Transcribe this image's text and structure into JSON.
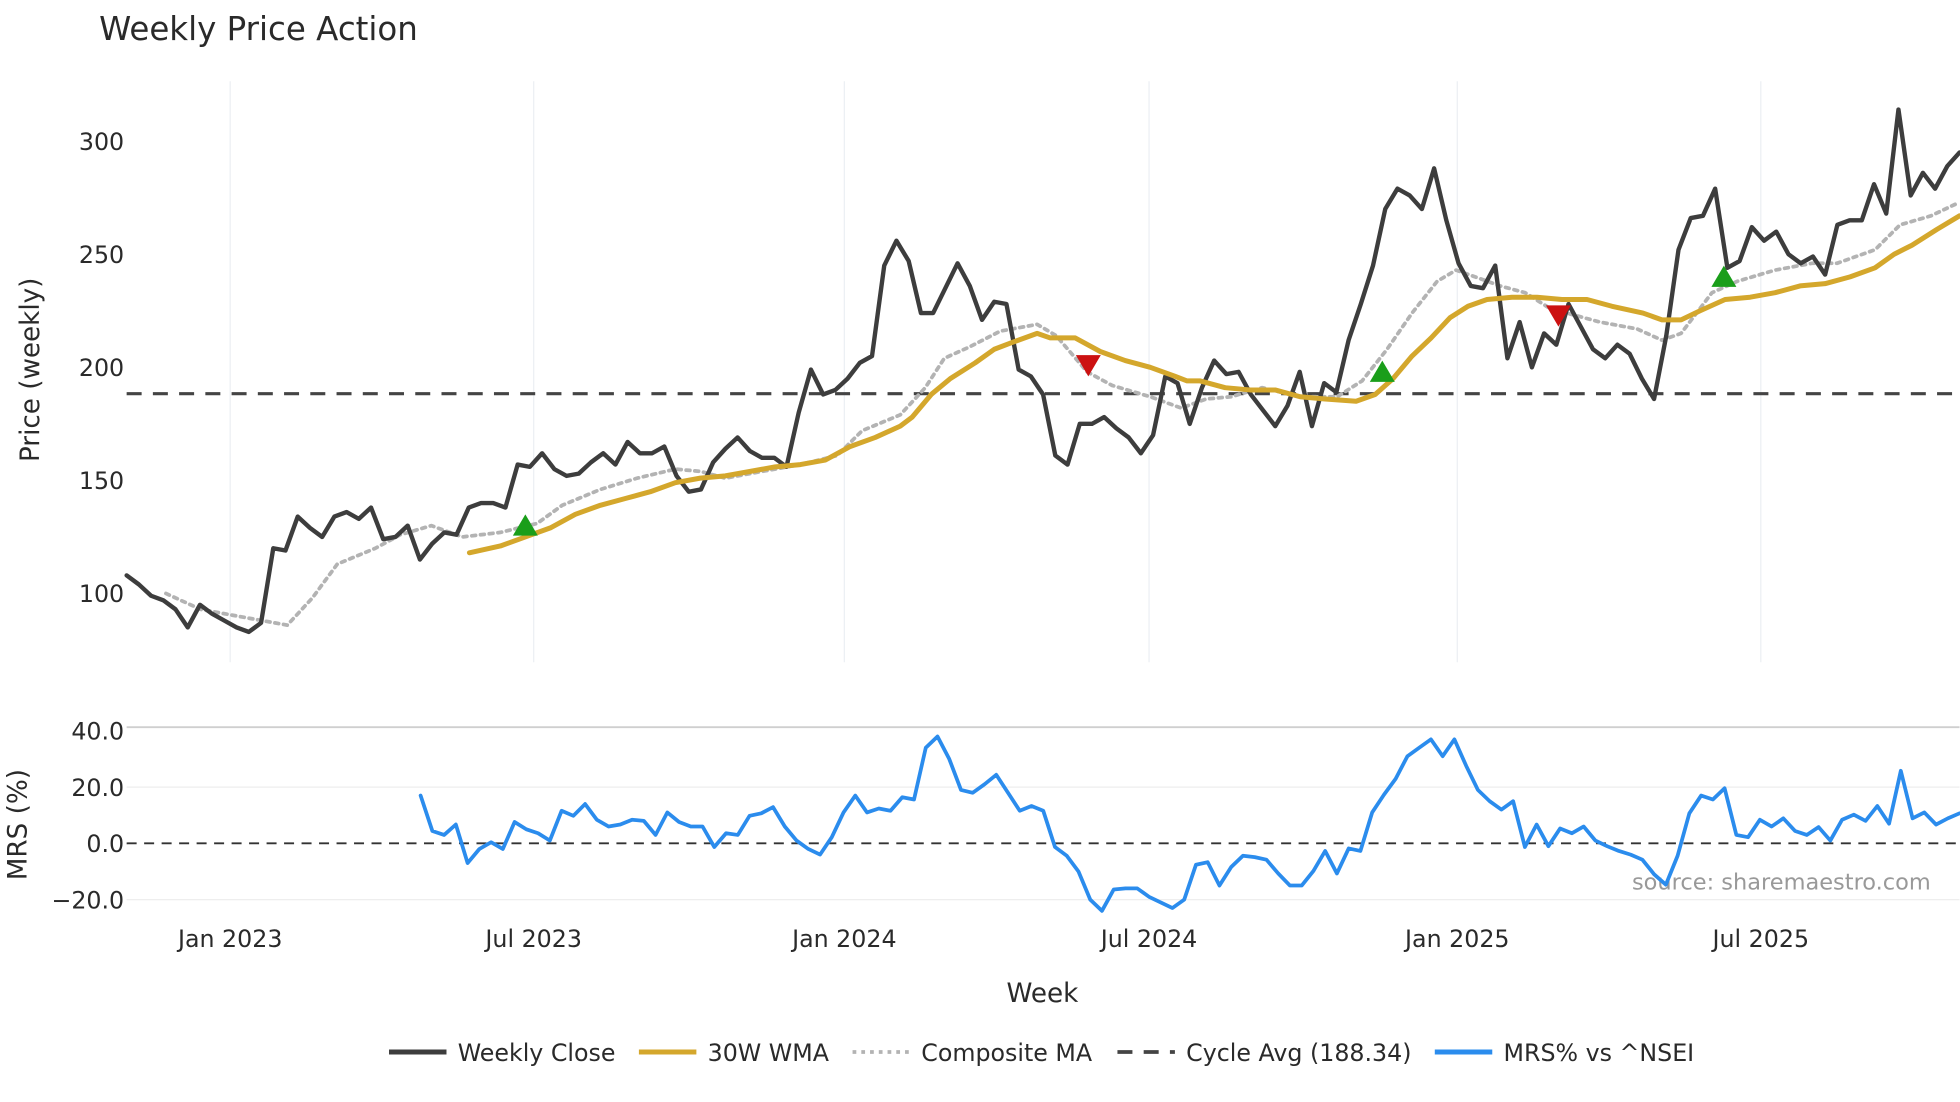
{
  "chart_data": [
    {
      "type": "line",
      "title": "Weekly Price Action",
      "ylabel": "Price (weekly)",
      "ylim": [
        70,
        325
      ],
      "yticks": [
        100,
        150,
        200,
        250,
        300
      ],
      "xlim_weeks": [
        0,
        154
      ],
      "xticks": [
        {
          "week": 8.7,
          "label": "Jan 2023"
        },
        {
          "week": 34.2,
          "label": "Jul 2023"
        },
        {
          "week": 60.3,
          "label": "Jan 2024"
        },
        {
          "week": 85.9,
          "label": "Jul 2024"
        },
        {
          "week": 111.8,
          "label": "Jan 2025"
        },
        {
          "week": 137.3,
          "label": "Jul 2025"
        }
      ],
      "grid": true,
      "series": [
        {
          "name": "Weekly Close",
          "color": "#3d3d3d",
          "x_start": 0,
          "x_end": 154,
          "values": [
            108,
            104,
            99,
            97,
            93,
            85,
            95,
            91,
            88,
            85,
            83,
            87,
            120,
            119,
            134,
            129,
            125,
            134,
            136,
            133,
            138,
            124,
            125,
            130,
            115,
            122,
            127,
            126,
            138,
            140,
            140,
            138,
            157,
            156,
            162,
            155,
            152,
            153,
            158,
            162,
            157,
            167,
            162,
            162,
            165,
            152,
            145,
            146,
            158,
            164,
            169,
            163,
            160,
            160,
            156,
            180,
            199,
            188,
            190,
            195,
            202,
            205,
            245,
            256,
            247,
            224,
            224,
            235,
            246,
            236,
            221,
            229,
            228,
            199,
            196,
            188,
            161,
            157,
            175,
            175,
            178,
            173,
            169,
            162,
            170,
            196,
            193,
            175,
            191,
            203,
            197,
            198,
            188,
            181,
            174,
            183,
            198,
            174,
            193,
            189,
            212,
            228,
            245,
            270,
            279,
            276,
            270,
            288,
            265,
            246,
            236,
            235,
            245,
            204,
            220,
            200,
            215,
            210,
            228,
            218,
            208,
            204,
            210,
            206,
            195,
            186,
            214,
            252,
            266,
            267,
            279,
            244,
            247,
            262,
            256,
            260,
            250,
            246,
            249,
            241,
            263,
            265,
            265,
            281,
            268,
            314,
            276,
            286,
            279,
            289,
            295
          ]
        },
        {
          "name": "30W WMA",
          "color": "#d4a72c",
          "points": [
            [
              28.8,
              118
            ],
            [
              31.4,
              121
            ],
            [
              33.5,
              125
            ],
            [
              35.6,
              129
            ],
            [
              37.7,
              135
            ],
            [
              39.8,
              139
            ],
            [
              41.9,
              142
            ],
            [
              44.0,
              145
            ],
            [
              46.1,
              149
            ],
            [
              48.2,
              151
            ],
            [
              50.3,
              152
            ],
            [
              52.4,
              154
            ],
            [
              54.5,
              156
            ],
            [
              56.6,
              157
            ],
            [
              58.7,
              159
            ],
            [
              60.8,
              165
            ],
            [
              62.9,
              169
            ],
            [
              65.0,
              174
            ],
            [
              66.0,
              178
            ],
            [
              67.6,
              188
            ],
            [
              69.2,
              195
            ],
            [
              71.3,
              202
            ],
            [
              72.9,
              208
            ],
            [
              74.4,
              211
            ],
            [
              76.5,
              215
            ],
            [
              77.6,
              213
            ],
            [
              79.7,
              213
            ],
            [
              81.8,
              207
            ],
            [
              83.9,
              203
            ],
            [
              86.0,
              200
            ],
            [
              88.1,
              196
            ],
            [
              89.1,
              194
            ],
            [
              90.2,
              194
            ],
            [
              92.3,
              191
            ],
            [
              94.4,
              190
            ],
            [
              96.5,
              190
            ],
            [
              98.6,
              187
            ],
            [
              100.7,
              186
            ],
            [
              103.3,
              185
            ],
            [
              104.9,
              188
            ],
            [
              106.4,
              195
            ],
            [
              108.0,
              205
            ],
            [
              109.6,
              213
            ],
            [
              111.2,
              222
            ],
            [
              112.7,
              227
            ],
            [
              114.3,
              230
            ],
            [
              116.4,
              231
            ],
            [
              118.5,
              231
            ],
            [
              120.6,
              230
            ],
            [
              122.7,
              230
            ],
            [
              124.8,
              227
            ],
            [
              127.4,
              224
            ],
            [
              129.0,
              221
            ],
            [
              130.6,
              221
            ],
            [
              132.2,
              225
            ],
            [
              134.3,
              230
            ],
            [
              136.4,
              231
            ],
            [
              138.5,
              233
            ],
            [
              140.6,
              236
            ],
            [
              142.7,
              237
            ],
            [
              144.8,
              240
            ],
            [
              146.9,
              244
            ],
            [
              148.5,
              250
            ],
            [
              150.0,
              254
            ],
            [
              152.1,
              261
            ],
            [
              154.0,
              267
            ]
          ]
        },
        {
          "name": "Composite MA",
          "color": "#b3b3b3",
          "points": [
            [
              3.3,
              100
            ],
            [
              6.2,
              93
            ],
            [
              9.3,
              90
            ],
            [
              13.5,
              86
            ],
            [
              15.6,
              98
            ],
            [
              17.7,
              113
            ],
            [
              20.9,
              120
            ],
            [
              23.0,
              126
            ],
            [
              25.6,
              130
            ],
            [
              28.2,
              125
            ],
            [
              31.4,
              127
            ],
            [
              34.5,
              131
            ],
            [
              36.6,
              139
            ],
            [
              39.8,
              146
            ],
            [
              42.9,
              151
            ],
            [
              46.1,
              155
            ],
            [
              48.2,
              154
            ],
            [
              50.3,
              151
            ],
            [
              53.4,
              154
            ],
            [
              56.6,
              157
            ],
            [
              59.7,
              161
            ],
            [
              61.8,
              172
            ],
            [
              65.0,
              179
            ],
            [
              67.1,
              191
            ],
            [
              68.7,
              204
            ],
            [
              70.8,
              209
            ],
            [
              73.4,
              216
            ],
            [
              76.5,
              219
            ],
            [
              78.1,
              214
            ],
            [
              80.7,
              198
            ],
            [
              82.8,
              192
            ],
            [
              86.0,
              187
            ],
            [
              88.6,
              182
            ],
            [
              90.7,
              186
            ],
            [
              92.8,
              187
            ],
            [
              95.4,
              191
            ],
            [
              98.6,
              187
            ],
            [
              101.7,
              187
            ],
            [
              103.8,
              194
            ],
            [
              105.9,
              208
            ],
            [
              108.0,
              224
            ],
            [
              110.1,
              238
            ],
            [
              111.7,
              243
            ],
            [
              113.3,
              240
            ],
            [
              115.4,
              236
            ],
            [
              117.5,
              233
            ],
            [
              119.6,
              226
            ],
            [
              121.7,
              223
            ],
            [
              123.8,
              220
            ],
            [
              126.9,
              217
            ],
            [
              129.0,
              212
            ],
            [
              130.6,
              215
            ],
            [
              133.2,
              233
            ],
            [
              135.3,
              238
            ],
            [
              138.5,
              243
            ],
            [
              141.6,
              246
            ],
            [
              143.7,
              246
            ],
            [
              146.9,
              252
            ],
            [
              149.0,
              263
            ],
            [
              151.6,
              267
            ],
            [
              154.0,
              273
            ]
          ]
        },
        {
          "name": "Cycle Avg (188.34)",
          "color": "#444444",
          "value": 188.34
        }
      ],
      "markers": [
        {
          "type": "buy",
          "week": 33.5,
          "value": 130,
          "color": "#1a9e1a"
        },
        {
          "type": "sell",
          "week": 80.8,
          "value": 201,
          "color": "#cc1111"
        },
        {
          "type": "buy",
          "week": 105.5,
          "value": 198,
          "color": "#1a9e1a"
        },
        {
          "type": "sell",
          "week": 120.3,
          "value": 223,
          "color": "#cc1111"
        },
        {
          "type": "buy",
          "week": 134.2,
          "value": 240,
          "color": "#1a9e1a"
        }
      ]
    },
    {
      "type": "line",
      "ylabel": "MRS (%)",
      "xlabel": "Week",
      "ylim": [
        -27,
        43
      ],
      "yticks": [
        {
          "v": 40,
          "label": "40.0"
        },
        {
          "v": 20,
          "label": "20.0"
        },
        {
          "v": 0,
          "label": "0.0"
        },
        {
          "v": -20,
          "label": "−20.0"
        }
      ],
      "zero_line": 0,
      "series": [
        {
          "name": "MRS% vs ^NSEI",
          "color": "#2b8ced",
          "x_start": 24.7,
          "x_end": 154,
          "values": [
            17,
            4.4,
            3,
            6.7,
            -7,
            -2,
            0.4,
            -2,
            7.6,
            5,
            3.6,
            1,
            11.6,
            9.8,
            14,
            8.4,
            6,
            6.7,
            8.4,
            8,
            3,
            11,
            7.6,
            6,
            6,
            -1.3,
            3.6,
            3,
            9.8,
            10.7,
            12.9,
            6,
            1,
            -2,
            -4,
            2.2,
            11,
            17,
            11,
            12.4,
            11.6,
            16.4,
            15.6,
            34,
            38,
            30,
            19,
            18,
            21,
            24.4,
            18,
            11.6,
            13.3,
            11.6,
            -1.3,
            -4.4,
            -10,
            -20,
            -24,
            -16.4,
            -16,
            -16,
            -19,
            -21,
            -23,
            -20,
            -7.6,
            -6.7,
            -15,
            -8.4,
            -4.4,
            -4.9,
            -5.8,
            -10.7,
            -15,
            -15,
            -9.8,
            -2.7,
            -10.7,
            -1.8,
            -2.7,
            11,
            17.3,
            23,
            31,
            34,
            37,
            31,
            37,
            27.6,
            19,
            15,
            12,
            15,
            -1.3,
            6.7,
            -1,
            5.3,
            3.6,
            6,
            1,
            -1,
            -2.7,
            -4,
            -5.8,
            -11,
            -14.7,
            -4.4,
            10.7,
            17,
            15.6,
            19.6,
            3,
            2.2,
            8.4,
            6,
            8.9,
            4.4,
            3,
            5.8,
            1,
            8.4,
            10.2,
            8,
            13.3,
            7,
            25.8,
            8.9,
            11,
            6.7,
            8.9,
            10.7
          ]
        }
      ]
    }
  ],
  "source_text": "source: sharemaestro.com",
  "legend": [
    "Weekly Close",
    "30W WMA",
    "Composite MA",
    "Cycle Avg (188.34)",
    "MRS% vs ^NSEI"
  ]
}
